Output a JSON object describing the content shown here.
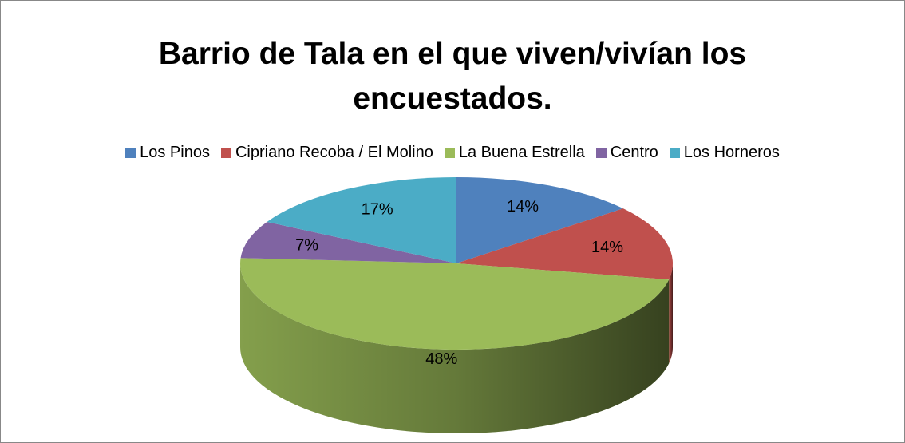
{
  "chart_data": {
    "type": "pie",
    "title": "Barrio de Tala en el que viven/vivían los encuestados.",
    "categories": [
      "Los Pinos",
      "Cipriano Recoba / El Molino",
      "La Buena Estrella",
      "Centro",
      "Los Horneros"
    ],
    "values": [
      14,
      14,
      48,
      7,
      17
    ],
    "value_labels": [
      "14%",
      "14%",
      "48%",
      "7%",
      "17%"
    ],
    "colors": [
      "#4f81bd",
      "#c0504d",
      "#9bbb59",
      "#8064a2",
      "#4bacc6"
    ],
    "legend": "top"
  }
}
